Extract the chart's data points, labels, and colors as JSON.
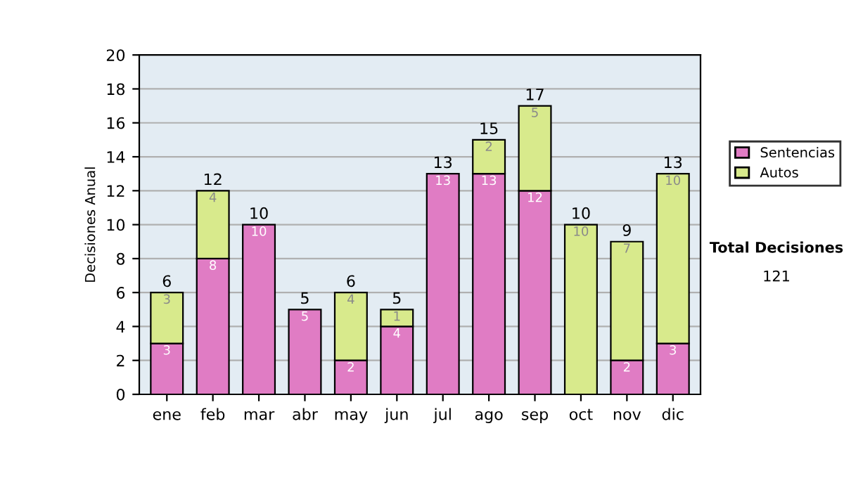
{
  "chart_data": {
    "type": "bar",
    "stacked": true,
    "ylabel": "Decisiones Anual",
    "categories": [
      "ene",
      "feb",
      "mar",
      "abr",
      "may",
      "jun",
      "jul",
      "ago",
      "sep",
      "oct",
      "nov",
      "dic"
    ],
    "series": [
      {
        "name": "Sentencias",
        "color": "#e07cc4",
        "values": [
          3,
          8,
          10,
          5,
          2,
          4,
          13,
          13,
          12,
          0,
          2,
          3
        ],
        "value_labels": [
          "3",
          "8",
          "10",
          "5",
          "2",
          "4",
          "13",
          "13",
          "12",
          null,
          "2",
          "3"
        ]
      },
      {
        "name": "Autos",
        "color": "#d8ea8c",
        "values": [
          3,
          4,
          0,
          0,
          4,
          1,
          0,
          2,
          5,
          10,
          7,
          10
        ],
        "value_labels": [
          "3",
          "4",
          null,
          null,
          "4",
          "1",
          null,
          "2",
          "5",
          "10",
          "7",
          "10"
        ]
      }
    ],
    "totals": [
      "6",
      "12",
      "10",
      "5",
      "6",
      "5",
      "13",
      "15",
      "17",
      "10",
      "9",
      "13"
    ],
    "ylim": [
      0,
      20
    ],
    "yticks": [
      0,
      2,
      4,
      6,
      8,
      10,
      12,
      14,
      16,
      18,
      20
    ],
    "grid": "y",
    "legend": "right",
    "annotations": [
      "Total Decisiones",
      "121"
    ]
  }
}
